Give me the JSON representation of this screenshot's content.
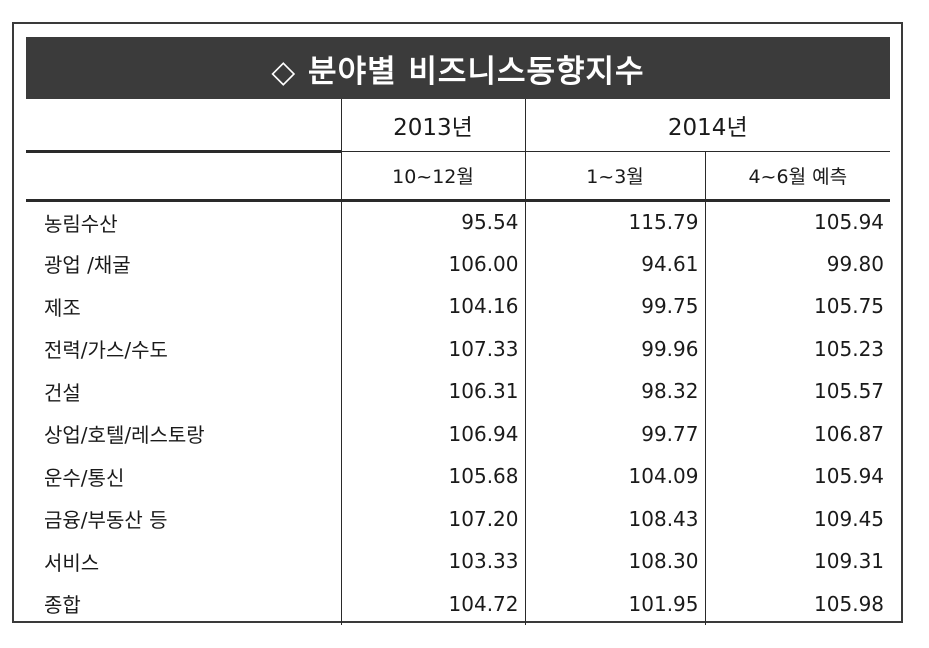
{
  "title": "◇ 분야별 비즈니스동향지수",
  "years": {
    "y2013": "2013년",
    "y2014": "2014년"
  },
  "periods": {
    "p1": "10~12월",
    "p2": "1~3월",
    "p3": "4~6월 예측"
  },
  "rows": [
    {
      "label": "농림수산",
      "v1": "95.54",
      "v2": "115.79",
      "v3": "105.94"
    },
    {
      "label": "광업 /채굴",
      "v1": "106.00",
      "v2": "94.61",
      "v3": "99.80"
    },
    {
      "label": "제조",
      "v1": "104.16",
      "v2": "99.75",
      "v3": "105.75"
    },
    {
      "label": "전력/가스/수도",
      "v1": "107.33",
      "v2": "99.96",
      "v3": "105.23"
    },
    {
      "label": "건설",
      "v1": "106.31",
      "v2": "98.32",
      "v3": "105.57"
    },
    {
      "label": "상업/호텔/레스토랑",
      "v1": "106.94",
      "v2": "99.77",
      "v3": "106.87"
    },
    {
      "label": "운수/통신",
      "v1": "105.68",
      "v2": "104.09",
      "v3": "105.94"
    },
    {
      "label": "금융/부동산 등",
      "v1": "107.20",
      "v2": "108.43",
      "v3": "109.45"
    },
    {
      "label": "서비스",
      "v1": "103.33",
      "v2": "108.30",
      "v3": "109.31"
    },
    {
      "label": "종합",
      "v1": "104.72",
      "v2": "101.95",
      "v3": "105.98"
    }
  ]
}
